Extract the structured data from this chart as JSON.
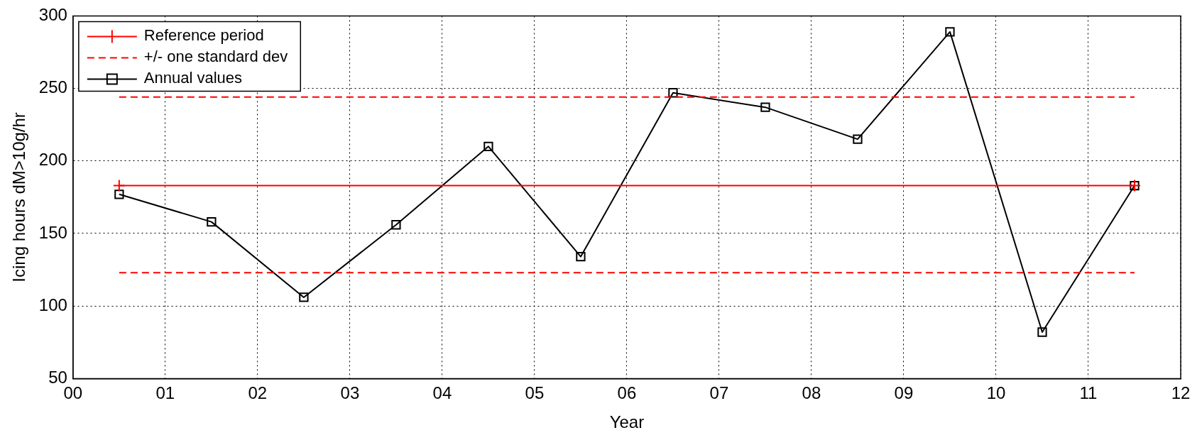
{
  "chart_data": {
    "type": "line",
    "xlabel": "Year",
    "ylabel": "Icing hours dM>10g/hr",
    "xlim": [
      0,
      12
    ],
    "xticks": [
      {
        "value": 0,
        "label": "00"
      },
      {
        "value": 1,
        "label": "01"
      },
      {
        "value": 2,
        "label": "02"
      },
      {
        "value": 3,
        "label": "03"
      },
      {
        "value": 4,
        "label": "04"
      },
      {
        "value": 5,
        "label": "05"
      },
      {
        "value": 6,
        "label": "06"
      },
      {
        "value": 7,
        "label": "07"
      },
      {
        "value": 8,
        "label": "08"
      },
      {
        "value": 9,
        "label": "09"
      },
      {
        "value": 10,
        "label": "10"
      },
      {
        "value": 11,
        "label": "11"
      },
      {
        "value": 12,
        "label": "12"
      }
    ],
    "ylim": [
      50,
      300
    ],
    "yticks": [
      50,
      100,
      150,
      200,
      250,
      300
    ],
    "grid": true,
    "legend": "top left",
    "series": [
      {
        "name": "Reference period",
        "color": "#ff0000",
        "marker": "cross",
        "line_style": "solid",
        "x": [
          0.5,
          11.5
        ],
        "values": [
          183,
          183
        ]
      },
      {
        "name": "+/- one standard dev",
        "color": "#ff0000",
        "marker": "none",
        "line_style": "dashed",
        "x": [
          0.5,
          11.5
        ],
        "values": [
          244,
          244
        ]
      },
      {
        "color": "#ff0000",
        "marker": "none",
        "line_style": "dashed",
        "x": [
          0.5,
          11.5
        ],
        "values": [
          123,
          123
        ]
      },
      {
        "name": "Annual values",
        "color": "#000000",
        "marker": "square",
        "line_style": "solid",
        "x": [
          0.5,
          1.5,
          2.5,
          3.5,
          4.5,
          5.5,
          6.5,
          7.5,
          8.5,
          9.5,
          10.5,
          11.5
        ],
        "values": [
          177,
          158,
          106,
          156,
          210,
          134,
          247,
          237,
          215,
          289,
          82,
          183
        ]
      }
    ]
  }
}
